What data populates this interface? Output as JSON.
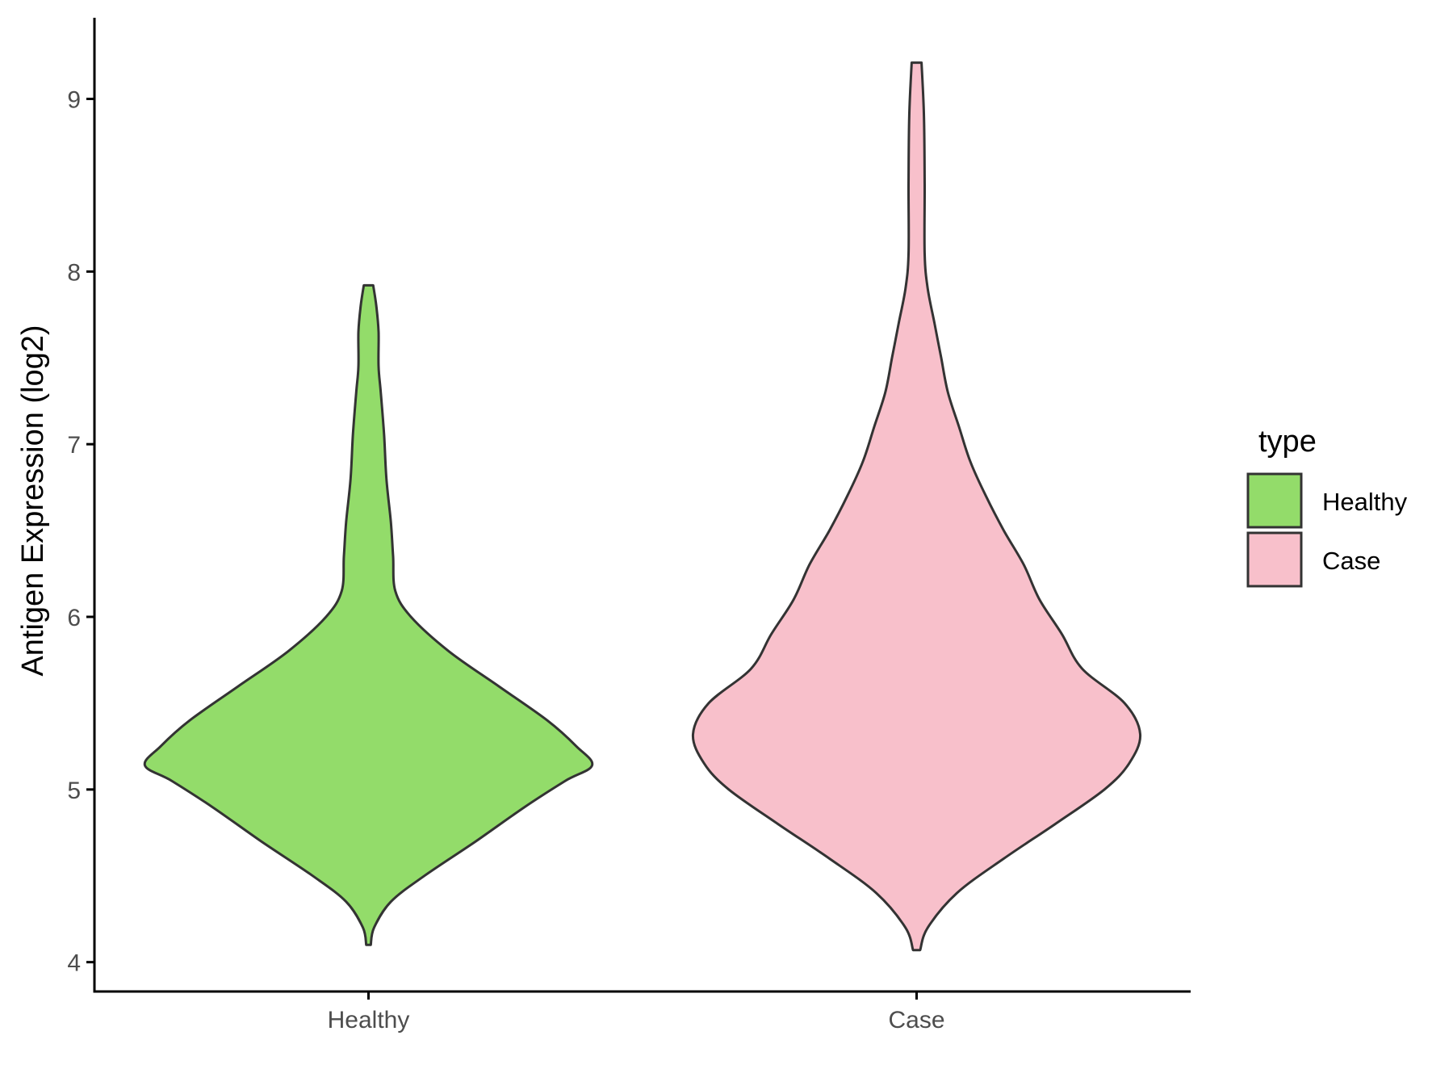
{
  "chart_data": {
    "type": "violin",
    "title": "",
    "xlabel": "",
    "ylabel": "Antigen Expression (log2)",
    "ylim": [
      3.83,
      9.47
    ],
    "yticks": [
      4,
      5,
      6,
      7,
      8,
      9
    ],
    "categories": [
      "Healthy",
      "Case"
    ],
    "legend": {
      "title": "type",
      "position": "right",
      "entries": [
        {
          "label": "Healthy",
          "color": "#93dc6a"
        },
        {
          "label": "Case",
          "color": "#f8c0cb"
        }
      ]
    },
    "series": [
      {
        "name": "Healthy",
        "color": "#93dc6a",
        "min": 4.1,
        "max": 7.92,
        "profile": [
          [
            4.1,
            0.01
          ],
          [
            4.2,
            0.025
          ],
          [
            4.35,
            0.1
          ],
          [
            4.5,
            0.25
          ],
          [
            4.7,
            0.48
          ],
          [
            4.9,
            0.7
          ],
          [
            5.05,
            0.88
          ],
          [
            5.14,
            1.0
          ],
          [
            5.25,
            0.93
          ],
          [
            5.4,
            0.8
          ],
          [
            5.6,
            0.58
          ],
          [
            5.8,
            0.36
          ],
          [
            6.0,
            0.19
          ],
          [
            6.15,
            0.12
          ],
          [
            6.35,
            0.11
          ],
          [
            6.55,
            0.1
          ],
          [
            6.8,
            0.08
          ],
          [
            7.05,
            0.07
          ],
          [
            7.3,
            0.055
          ],
          [
            7.45,
            0.045
          ],
          [
            7.65,
            0.045
          ],
          [
            7.8,
            0.035
          ],
          [
            7.92,
            0.021
          ]
        ]
      },
      {
        "name": "Case",
        "color": "#f8c0cb",
        "min": 4.07,
        "max": 9.21,
        "profile": [
          [
            4.07,
            0.016
          ],
          [
            4.2,
            0.05
          ],
          [
            4.4,
            0.18
          ],
          [
            4.6,
            0.39
          ],
          [
            4.8,
            0.62
          ],
          [
            5.0,
            0.84
          ],
          [
            5.15,
            0.95
          ],
          [
            5.32,
            1.0
          ],
          [
            5.5,
            0.93
          ],
          [
            5.7,
            0.74
          ],
          [
            5.9,
            0.65
          ],
          [
            6.1,
            0.55
          ],
          [
            6.3,
            0.48
          ],
          [
            6.5,
            0.39
          ],
          [
            6.7,
            0.31
          ],
          [
            6.9,
            0.24
          ],
          [
            7.1,
            0.19
          ],
          [
            7.3,
            0.14
          ],
          [
            7.5,
            0.11
          ],
          [
            7.7,
            0.08
          ],
          [
            7.9,
            0.05
          ],
          [
            8.1,
            0.036
          ],
          [
            8.5,
            0.036
          ],
          [
            8.9,
            0.033
          ],
          [
            9.21,
            0.022
          ]
        ]
      }
    ]
  }
}
